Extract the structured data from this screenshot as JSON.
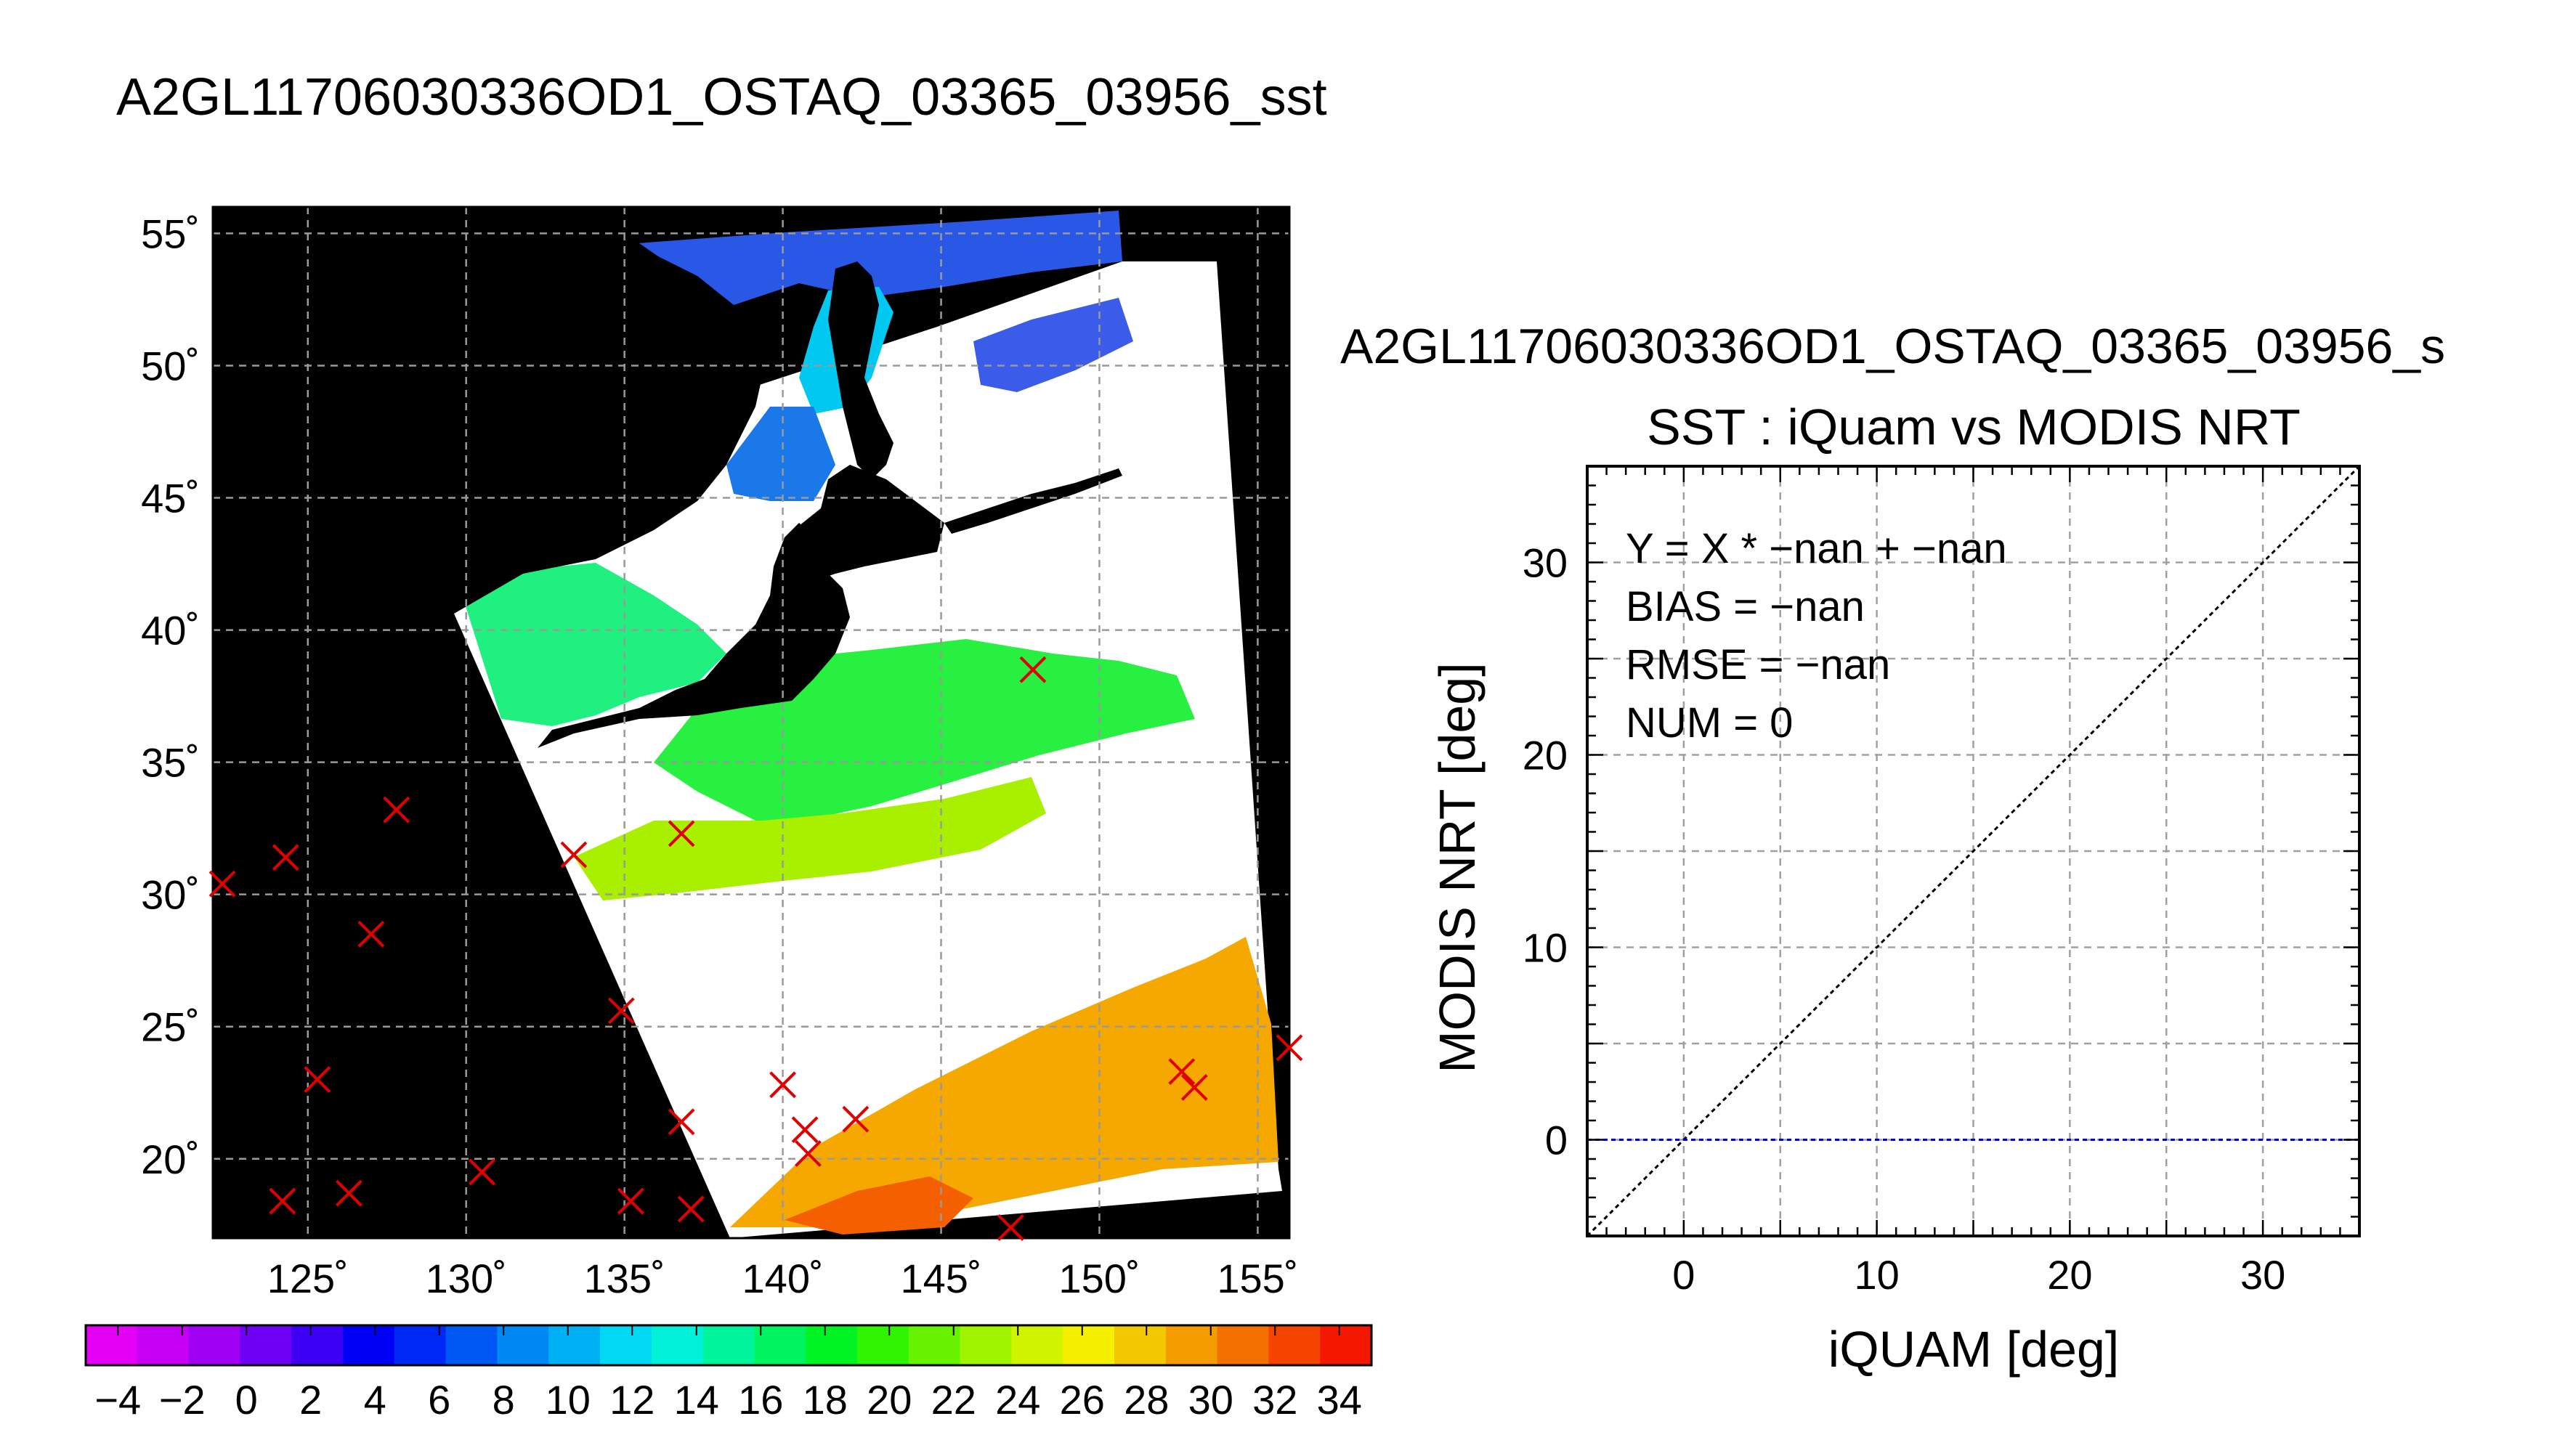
{
  "main_title": "A2GL11706030336OD1_OSTAQ_03365_03956_sst",
  "colorbar": {
    "ticks": [
      "−4",
      "−2",
      "0",
      "2",
      "4",
      "6",
      "8",
      "10",
      "12",
      "14",
      "16",
      "18",
      "20",
      "22",
      "24",
      "26",
      "28",
      "30",
      "32",
      "34"
    ],
    "colors": [
      "#e400f4",
      "#c600f4",
      "#a000f4",
      "#7000f4",
      "#3c00f4",
      "#0000f4",
      "#0028f4",
      "#0058f4",
      "#0088f4",
      "#00b0f4",
      "#00d8f4",
      "#00f0d8",
      "#00f49c",
      "#00f460",
      "#00f424",
      "#30f400",
      "#68f400",
      "#a0f400",
      "#d0f400",
      "#f4f000",
      "#f4c800",
      "#f49c00",
      "#f47000",
      "#f44400",
      "#f41800"
    ],
    "min": -5,
    "max": 35
  },
  "chart_data": [
    {
      "type": "map",
      "lon_range": [
        122,
        156
      ],
      "lat_range": [
        17,
        56
      ],
      "xticks": [
        "125˚",
        "130˚",
        "135˚",
        "140˚",
        "145˚",
        "150˚",
        "155˚"
      ],
      "yticks": [
        "55˚",
        "50˚",
        "45˚",
        "40˚",
        "35˚",
        "30˚",
        "25˚",
        "20˚"
      ],
      "grid": true,
      "matchup_points": [
        {
          "lon": 122.3,
          "lat": 30.4
        },
        {
          "lon": 124.3,
          "lat": 31.4
        },
        {
          "lon": 127.8,
          "lat": 33.2
        },
        {
          "lon": 127.0,
          "lat": 28.5
        },
        {
          "lon": 125.3,
          "lat": 23.0
        },
        {
          "lon": 124.2,
          "lat": 18.4
        },
        {
          "lon": 126.3,
          "lat": 18.7
        },
        {
          "lon": 130.5,
          "lat": 19.5
        },
        {
          "lon": 133.4,
          "lat": 31.5
        },
        {
          "lon": 136.8,
          "lat": 32.3
        },
        {
          "lon": 134.9,
          "lat": 25.6
        },
        {
          "lon": 136.8,
          "lat": 21.4
        },
        {
          "lon": 135.2,
          "lat": 18.4
        },
        {
          "lon": 137.1,
          "lat": 18.1
        },
        {
          "lon": 140.0,
          "lat": 22.8
        },
        {
          "lon": 140.7,
          "lat": 21.1
        },
        {
          "lon": 140.8,
          "lat": 20.2
        },
        {
          "lon": 142.3,
          "lat": 21.5
        },
        {
          "lon": 147.9,
          "lat": 38.5
        },
        {
          "lon": 147.2,
          "lat": 17.4
        },
        {
          "lon": 152.6,
          "lat": 23.3
        },
        {
          "lon": 153.0,
          "lat": 22.7
        },
        {
          "lon": 156.0,
          "lat": 24.2
        }
      ]
    },
    {
      "type": "scatter",
      "subtitle": "A2GL11706030336OD1_OSTAQ_03365_03956_s",
      "title": "SST : iQuam vs MODIS NRT",
      "xlabel": "iQUAM [deg]",
      "ylabel": "MODIS NRT [deg]",
      "xlim": [
        -5,
        35
      ],
      "ylim": [
        -5,
        35
      ],
      "xticks": [
        "0",
        "10",
        "20",
        "30"
      ],
      "yticks": [
        "0",
        "10",
        "20",
        "30"
      ],
      "grid": true,
      "stats": [
        "Y = X * −nan + −nan",
        "BIAS = −nan",
        "RMSE = −nan",
        "NUM = 0"
      ],
      "series": [
        {
          "values": []
        }
      ],
      "reference_lines": [
        {
          "kind": "one_to_one",
          "color": "#000000",
          "dash": true
        },
        {
          "kind": "horizontal",
          "y": 0,
          "color": "#0000cc",
          "dash": true
        }
      ]
    }
  ]
}
